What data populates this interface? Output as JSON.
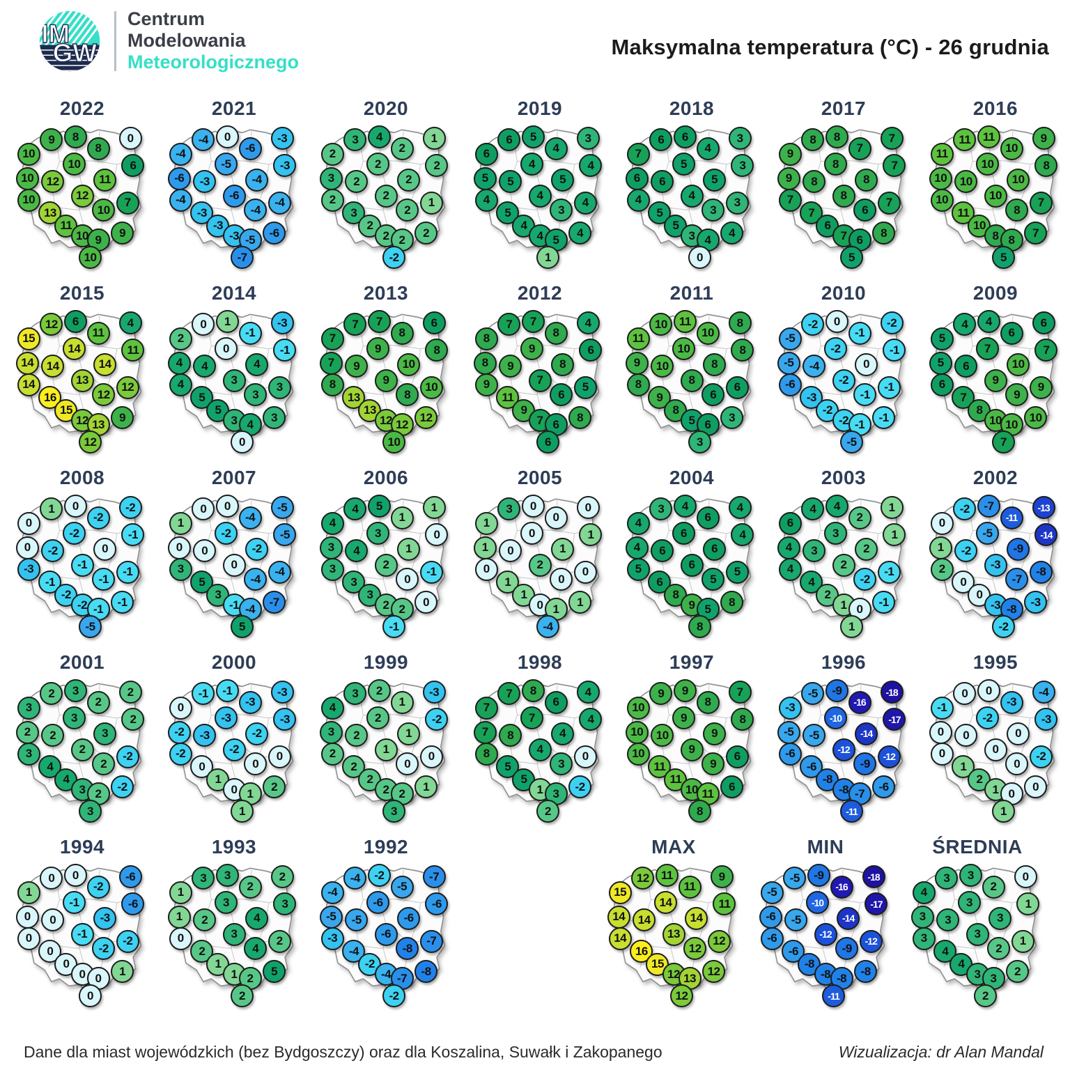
{
  "header": {
    "title": "Maksymalna temperatura (°C) - 26 grudnia",
    "logo": {
      "acronym_top": "IM",
      "acronym_bottom": "GW",
      "org_line1": "Centrum",
      "org_line2": "Modelowania",
      "org_line3": "Meteorologicznego"
    }
  },
  "footer": {
    "note": "Dane dla miast wojewódzkich (bez Bydgoszczy) oraz dla Koszalina, Suwałk i Zakopanego",
    "credit": "Wizualizacja: dr Alan Mandal"
  },
  "colors": {
    "logo_teal": "#35dfc8",
    "logo_navy": "#1d2b4f",
    "year_label": "#2e3d57",
    "scale": {
      "-18": "#1e12a2",
      "-17": "#1f16aa",
      "-16": "#2019b2",
      "-15": "#1e28be",
      "-14": "#1d36c8",
      "-13": "#1c44d2",
      "-12": "#1c52da",
      "-11": "#1e5cde",
      "-10": "#2066e2",
      "-9": "#1f76e6",
      "-8": "#2082e8",
      "-7": "#2a8fea",
      "-6": "#2e9aec",
      "-5": "#38a7ee",
      "-4": "#3ab2ef",
      "-3": "#34c2f0",
      "-2": "#3dd2f2",
      "-1": "#48dcf4",
      "0": "#d9f6fb",
      "1": "#82d795",
      "2": "#57c787",
      "3": "#2fb577",
      "4": "#17a86e",
      "5": "#10a26b",
      "6": "#0f9e61",
      "7": "#17a257",
      "8": "#2faa4f",
      "9": "#3db24a",
      "10": "#4bba45",
      "11": "#5dc33e",
      "12": "#7aca3a",
      "13": "#a2d434",
      "14": "#c8de30",
      "15": "#efe826",
      "16": "#fcee1e"
    }
  },
  "chart_data": {
    "type": "heatmap",
    "subtype": "small-multiple-maps",
    "title": "Maksymalna temperatura (°C) - 26 grudnia",
    "unit": "°C",
    "value_range": [
      -18,
      16
    ],
    "maps": [
      {
        "label": "2022",
        "values": [
          10,
          9,
          8,
          8,
          0,
          6,
          10,
          10,
          12,
          11,
          10,
          12,
          7,
          13,
          10,
          11,
          10,
          9,
          9,
          10
        ]
      },
      {
        "label": "2021",
        "values": [
          -4,
          -4,
          0,
          -6,
          -3,
          -3,
          -6,
          -5,
          -3,
          -4,
          -4,
          -6,
          -4,
          -3,
          -4,
          -3,
          -3,
          -5,
          -6,
          -7
        ]
      },
      {
        "label": "2020",
        "values": [
          2,
          3,
          4,
          2,
          1,
          2,
          3,
          2,
          2,
          2,
          2,
          2,
          1,
          3,
          2,
          2,
          2,
          2,
          2,
          -2
        ]
      },
      {
        "label": "2019",
        "values": [
          6,
          6,
          5,
          4,
          3,
          4,
          5,
          4,
          5,
          5,
          4,
          4,
          4,
          5,
          3,
          4,
          4,
          5,
          4,
          1
        ]
      },
      {
        "label": "2018",
        "values": [
          7,
          6,
          6,
          4,
          3,
          3,
          6,
          5,
          6,
          5,
          4,
          4,
          3,
          5,
          3,
          5,
          3,
          4,
          4,
          0
        ]
      },
      {
        "label": "2017",
        "values": [
          9,
          8,
          8,
          7,
          7,
          7,
          9,
          8,
          8,
          8,
          7,
          8,
          7,
          7,
          6,
          6,
          7,
          6,
          8,
          5
        ]
      },
      {
        "label": "2016",
        "values": [
          11,
          11,
          11,
          10,
          9,
          8,
          10,
          10,
          10,
          10,
          10,
          10,
          7,
          11,
          8,
          10,
          8,
          8,
          7,
          5
        ]
      },
      {
        "label": "2015",
        "values": [
          15,
          12,
          6,
          11,
          4,
          11,
          14,
          14,
          14,
          14,
          14,
          13,
          12,
          16,
          12,
          15,
          12,
          13,
          9,
          12
        ]
      },
      {
        "label": "2014",
        "values": [
          2,
          0,
          1,
          -1,
          -3,
          -1,
          4,
          0,
          4,
          4,
          4,
          3,
          3,
          5,
          3,
          5,
          3,
          4,
          3,
          0
        ]
      },
      {
        "label": "2013",
        "values": [
          7,
          7,
          7,
          8,
          6,
          8,
          7,
          9,
          9,
          10,
          8,
          9,
          10,
          13,
          8,
          13,
          12,
          12,
          12,
          10
        ]
      },
      {
        "label": "2012",
        "values": [
          8,
          7,
          7,
          8,
          4,
          6,
          8,
          9,
          9,
          8,
          9,
          7,
          5,
          11,
          6,
          9,
          7,
          6,
          8,
          6
        ]
      },
      {
        "label": "2011",
        "values": [
          11,
          10,
          11,
          10,
          8,
          8,
          9,
          10,
          10,
          8,
          8,
          8,
          6,
          9,
          6,
          8,
          5,
          6,
          3,
          3
        ]
      },
      {
        "label": "2010",
        "values": [
          -5,
          -2,
          0,
          -1,
          -2,
          -1,
          -5,
          -2,
          -4,
          0,
          -6,
          -2,
          -1,
          -3,
          -1,
          -2,
          -2,
          -1,
          -1,
          -5
        ]
      },
      {
        "label": "2009",
        "values": [
          5,
          4,
          4,
          6,
          6,
          7,
          5,
          7,
          6,
          10,
          6,
          9,
          9,
          7,
          9,
          8,
          10,
          10,
          10,
          7
        ]
      },
      {
        "label": "2008",
        "values": [
          0,
          1,
          0,
          -2,
          -2,
          -1,
          0,
          -2,
          -2,
          0,
          -3,
          -1,
          -1,
          -1,
          -1,
          -2,
          -2,
          -1,
          -1,
          -5
        ]
      },
      {
        "label": "2007",
        "values": [
          1,
          0,
          0,
          -4,
          -5,
          -5,
          0,
          -2,
          0,
          -2,
          3,
          0,
          -4,
          5,
          -4,
          3,
          -1,
          -4,
          -7,
          5
        ]
      },
      {
        "label": "2006",
        "values": [
          4,
          4,
          5,
          1,
          1,
          0,
          3,
          3,
          4,
          1,
          3,
          2,
          -1,
          3,
          0,
          3,
          2,
          2,
          0,
          -1
        ]
      },
      {
        "label": "2005",
        "values": [
          1,
          3,
          0,
          0,
          0,
          1,
          1,
          0,
          0,
          1,
          0,
          2,
          0,
          1,
          0,
          1,
          0,
          1,
          1,
          -4
        ]
      },
      {
        "label": "2004",
        "values": [
          4,
          3,
          4,
          6,
          4,
          4,
          4,
          6,
          6,
          6,
          5,
          6,
          5,
          6,
          5,
          8,
          9,
          5,
          8,
          8
        ]
      },
      {
        "label": "2003",
        "values": [
          6,
          4,
          4,
          2,
          1,
          1,
          4,
          3,
          3,
          2,
          4,
          2,
          -1,
          4,
          -2,
          2,
          1,
          0,
          -1,
          1
        ]
      },
      {
        "label": "2002",
        "values": [
          0,
          -2,
          -7,
          -11,
          -13,
          -14,
          1,
          -5,
          -2,
          -9,
          2,
          -3,
          -8,
          0,
          -7,
          0,
          -3,
          -8,
          -3,
          -2
        ]
      },
      {
        "label": "2001",
        "values": [
          3,
          2,
          3,
          2,
          2,
          2,
          2,
          3,
          2,
          3,
          3,
          2,
          -2,
          4,
          2,
          4,
          3,
          2,
          -2,
          3
        ]
      },
      {
        "label": "2000",
        "values": [
          0,
          -1,
          -1,
          -3,
          -3,
          -3,
          -2,
          -3,
          -3,
          -2,
          -2,
          -2,
          0,
          0,
          0,
          1,
          0,
          1,
          2,
          1
        ]
      },
      {
        "label": "1999",
        "values": [
          4,
          3,
          2,
          1,
          -3,
          -2,
          3,
          2,
          2,
          1,
          2,
          1,
          0,
          2,
          0,
          2,
          2,
          2,
          1,
          3
        ]
      },
      {
        "label": "1998",
        "values": [
          7,
          7,
          8,
          6,
          4,
          4,
          7,
          7,
          8,
          4,
          8,
          4,
          0,
          5,
          3,
          5,
          1,
          3,
          -2,
          2
        ]
      },
      {
        "label": "1997",
        "values": [
          10,
          9,
          9,
          8,
          7,
          8,
          10,
          9,
          10,
          9,
          10,
          9,
          6,
          11,
          9,
          11,
          10,
          11,
          6,
          8
        ]
      },
      {
        "label": "1996",
        "values": [
          -3,
          -5,
          -9,
          -16,
          -18,
          -17,
          -5,
          -10,
          -5,
          -14,
          -6,
          -12,
          -12,
          -6,
          -9,
          -8,
          -8,
          -7,
          -6,
          -11
        ]
      },
      {
        "label": "1995",
        "values": [
          -1,
          0,
          0,
          -3,
          -4,
          -3,
          0,
          -2,
          0,
          0,
          0,
          0,
          -2,
          1,
          0,
          2,
          1,
          0,
          0,
          1
        ]
      },
      {
        "label": "1994",
        "values": [
          1,
          0,
          0,
          -2,
          -6,
          -6,
          0,
          -1,
          0,
          -3,
          0,
          -1,
          -2,
          0,
          -2,
          0,
          0,
          0,
          1,
          0
        ]
      },
      {
        "label": "1993",
        "values": [
          1,
          3,
          3,
          2,
          2,
          3,
          1,
          3,
          2,
          4,
          0,
          3,
          2,
          2,
          4,
          1,
          1,
          2,
          5,
          2
        ]
      },
      {
        "label": "1992",
        "values": [
          -4,
          -4,
          -2,
          -5,
          -7,
          -6,
          -5,
          -6,
          -5,
          -6,
          -3,
          -6,
          -7,
          -4,
          -8,
          -2,
          -4,
          -7,
          -8,
          -2
        ]
      },
      {
        "label": "MAX",
        "values": [
          15,
          12,
          11,
          11,
          9,
          11,
          14,
          14,
          14,
          14,
          14,
          13,
          12,
          16,
          12,
          15,
          12,
          13,
          12,
          12
        ]
      },
      {
        "label": "MIN",
        "values": [
          -5,
          -5,
          -9,
          -16,
          -18,
          -17,
          -6,
          -10,
          -5,
          -14,
          -6,
          -12,
          -12,
          -6,
          -9,
          -8,
          -8,
          -8,
          -8,
          -11
        ]
      },
      {
        "label": "ŚREDNIA",
        "values": [
          4,
          3,
          3,
          2,
          0,
          1,
          3,
          3,
          3,
          3,
          3,
          3,
          1,
          4,
          2,
          4,
          3,
          3,
          2,
          2
        ]
      }
    ]
  }
}
